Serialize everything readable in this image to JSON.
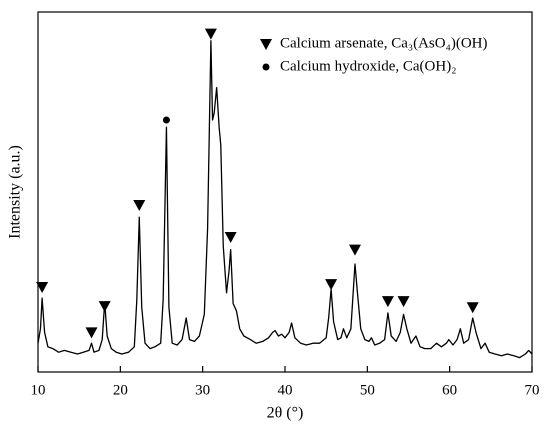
{
  "chart_data": {
    "type": "line",
    "x_label": "2θ (°)",
    "y_label": "Intensity (a.u.)",
    "xlim": [
      10,
      70
    ],
    "xticks": [
      10,
      20,
      30,
      40,
      50,
      60,
      70
    ],
    "ylim": [
      0,
      100
    ],
    "color": "#000000",
    "x": [
      10,
      10.3,
      10.5,
      10.8,
      11.2,
      11.8,
      12.5,
      13.2,
      14,
      14.8,
      15.5,
      16.2,
      16.5,
      16.8,
      17.4,
      17.8,
      18.1,
      18.4,
      18.9,
      19.5,
      20.2,
      21,
      21.7,
      22,
      22.3,
      22.6,
      23,
      23.6,
      24.2,
      24.9,
      25.2,
      25.6,
      25.9,
      26.3,
      26.9,
      27.5,
      28,
      28.4,
      29,
      29.6,
      30.2,
      30.6,
      31,
      31.2,
      31.4,
      31.7,
      32,
      32.2,
      32.5,
      32.9,
      33.2,
      33.4,
      33.7,
      34.1,
      34.5,
      35,
      35.8,
      36.5,
      37.3,
      38,
      38.5,
      38.8,
      39.2,
      39.6,
      40,
      40.5,
      40.8,
      41.2,
      41.9,
      42.6,
      43.4,
      44.2,
      45,
      45.3,
      45.6,
      45.9,
      46.4,
      46.8,
      47.1,
      47.5,
      48,
      48.5,
      48.8,
      49.2,
      49.7,
      50.2,
      50.5,
      50.9,
      51.5,
      52.1,
      52.5,
      52.9,
      53.5,
      54,
      54.4,
      54.8,
      55.3,
      55.9,
      56.4,
      57,
      57.7,
      58.4,
      59,
      59.6,
      59.9,
      60.4,
      60.9,
      61.3,
      61.7,
      62.3,
      62.8,
      63.2,
      63.8,
      64.3,
      64.8,
      65.5,
      66.3,
      67,
      67.8,
      68.5,
      69.2,
      69.6,
      70
    ],
    "values": [
      8,
      12,
      20.5,
      11,
      7,
      6.5,
      5.5,
      6,
      5.5,
      5,
      5.5,
      6,
      8,
      5.5,
      6,
      9,
      19.4,
      10,
      6.5,
      5.5,
      5,
      5.5,
      7,
      20,
      43,
      18,
      8,
      6.5,
      7,
      8,
      20,
      68,
      18,
      8,
      7.5,
      9,
      15,
      9,
      8.5,
      10,
      16,
      40,
      92,
      70,
      72,
      79,
      68,
      63,
      35,
      22,
      28,
      34,
      19,
      17,
      12,
      10,
      9,
      8,
      8.5,
      9.5,
      11,
      11.5,
      10,
      10.5,
      9.5,
      11,
      13.6,
      9.5,
      8,
      7.5,
      8,
      8,
      9.5,
      15,
      23,
      14,
      9,
      9.5,
      12,
      9.5,
      12,
      30,
      22,
      12,
      9,
      8.5,
      9.5,
      7.5,
      8,
      9,
      16.4,
      10,
      8.5,
      11,
      16,
      12,
      8,
      10,
      7,
      6.5,
      6.5,
      8,
      7,
      8,
      9,
      7.5,
      9,
      12,
      8,
      9,
      15,
      11,
      6.5,
      8,
      5.5,
      5,
      4.5,
      5,
      4.5,
      4,
      5,
      6,
      5
    ],
    "markers": [
      {
        "name": "Calcium arsenate, Ca₃(AsO₄)(OH)",
        "marker": "triangle",
        "color": "#000000",
        "x": [
          10.5,
          16.5,
          18.1,
          22.3,
          31,
          33.4,
          45.6,
          48.5,
          52.5,
          54.4,
          62.8
        ],
        "values": [
          23.6,
          11,
          18.3,
          46.4,
          94,
          37.5,
          24.4,
          34,
          19.7,
          19.7,
          18
        ]
      },
      {
        "name": "Calcium hydroxide, Ca(OH)₂",
        "marker": "circle",
        "color": "#000000",
        "x": [
          25.6
        ],
        "values": [
          70
        ]
      }
    ],
    "legend": "upper right"
  }
}
